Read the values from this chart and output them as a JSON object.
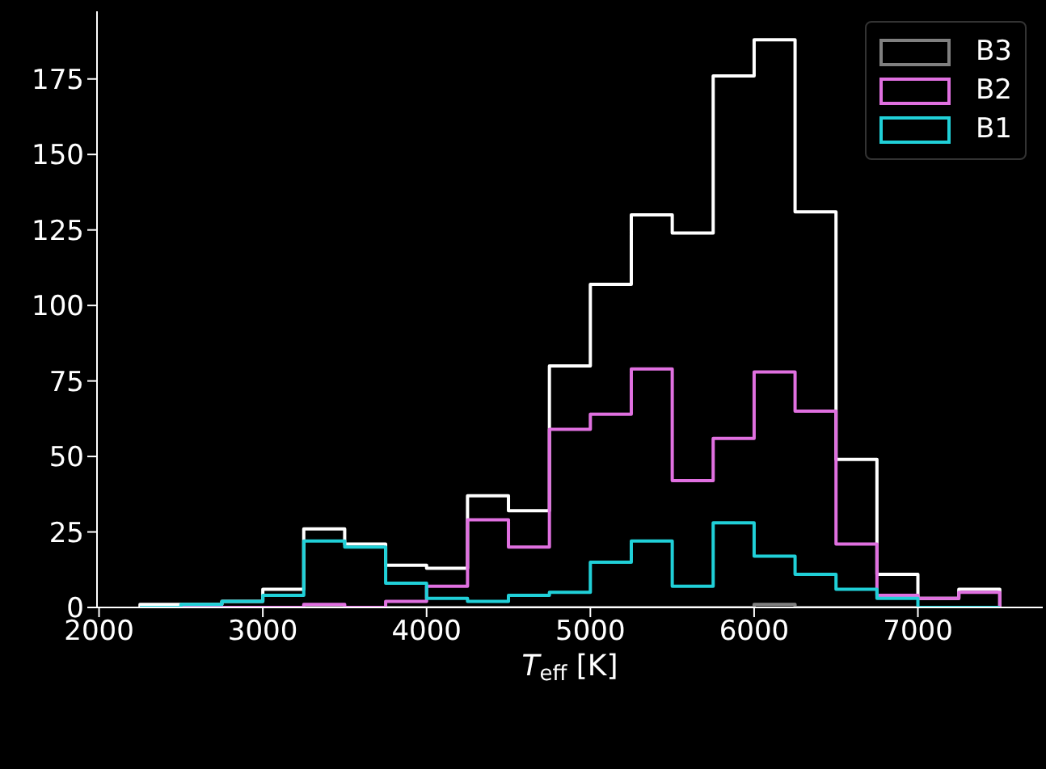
{
  "chart_data": {
    "type": "histogram",
    "xlabel": "T$_{eff}$ [K]",
    "bins": [
      2250,
      2500,
      2750,
      3000,
      3250,
      3500,
      3750,
      4000,
      4250,
      4500,
      4750,
      5000,
      5250,
      5500,
      5750,
      6000,
      6250,
      6500,
      6750,
      7000,
      7250,
      7500
    ],
    "series": [
      {
        "color": "#ffffff",
        "values": [
          1,
          1,
          2,
          6,
          26,
          21,
          14,
          13,
          37,
          32,
          80,
          107,
          130,
          124,
          176,
          188,
          131,
          49,
          11,
          3,
          6
        ]
      },
      {
        "name": "B3",
        "color": "#808080",
        "values": [
          0,
          0,
          0,
          0,
          0,
          0,
          0,
          0,
          0,
          0,
          0,
          0,
          0,
          0,
          0,
          1,
          0,
          0,
          0,
          0,
          0
        ]
      },
      {
        "name": "B2",
        "color": "#e070e0",
        "values": [
          0,
          0,
          0,
          0,
          1,
          0,
          2,
          7,
          29,
          20,
          59,
          64,
          79,
          42,
          56,
          78,
          65,
          21,
          4,
          3,
          5
        ]
      },
      {
        "name": "B1",
        "color": "#20d0d8",
        "values": [
          0,
          1,
          2,
          4,
          22,
          20,
          8,
          3,
          2,
          4,
          5,
          15,
          22,
          7,
          28,
          17,
          11,
          6,
          3,
          0,
          0
        ]
      }
    ],
    "xlim": [
      1987.5,
      7762.5
    ],
    "xticks": [
      2000,
      3000,
      4000,
      5000,
      6000,
      7000
    ],
    "ylim": [
      0,
      197.4
    ],
    "yticks": [
      0,
      25,
      50,
      75,
      100,
      125,
      150,
      175
    ],
    "grid": false,
    "legend": "top right"
  }
}
